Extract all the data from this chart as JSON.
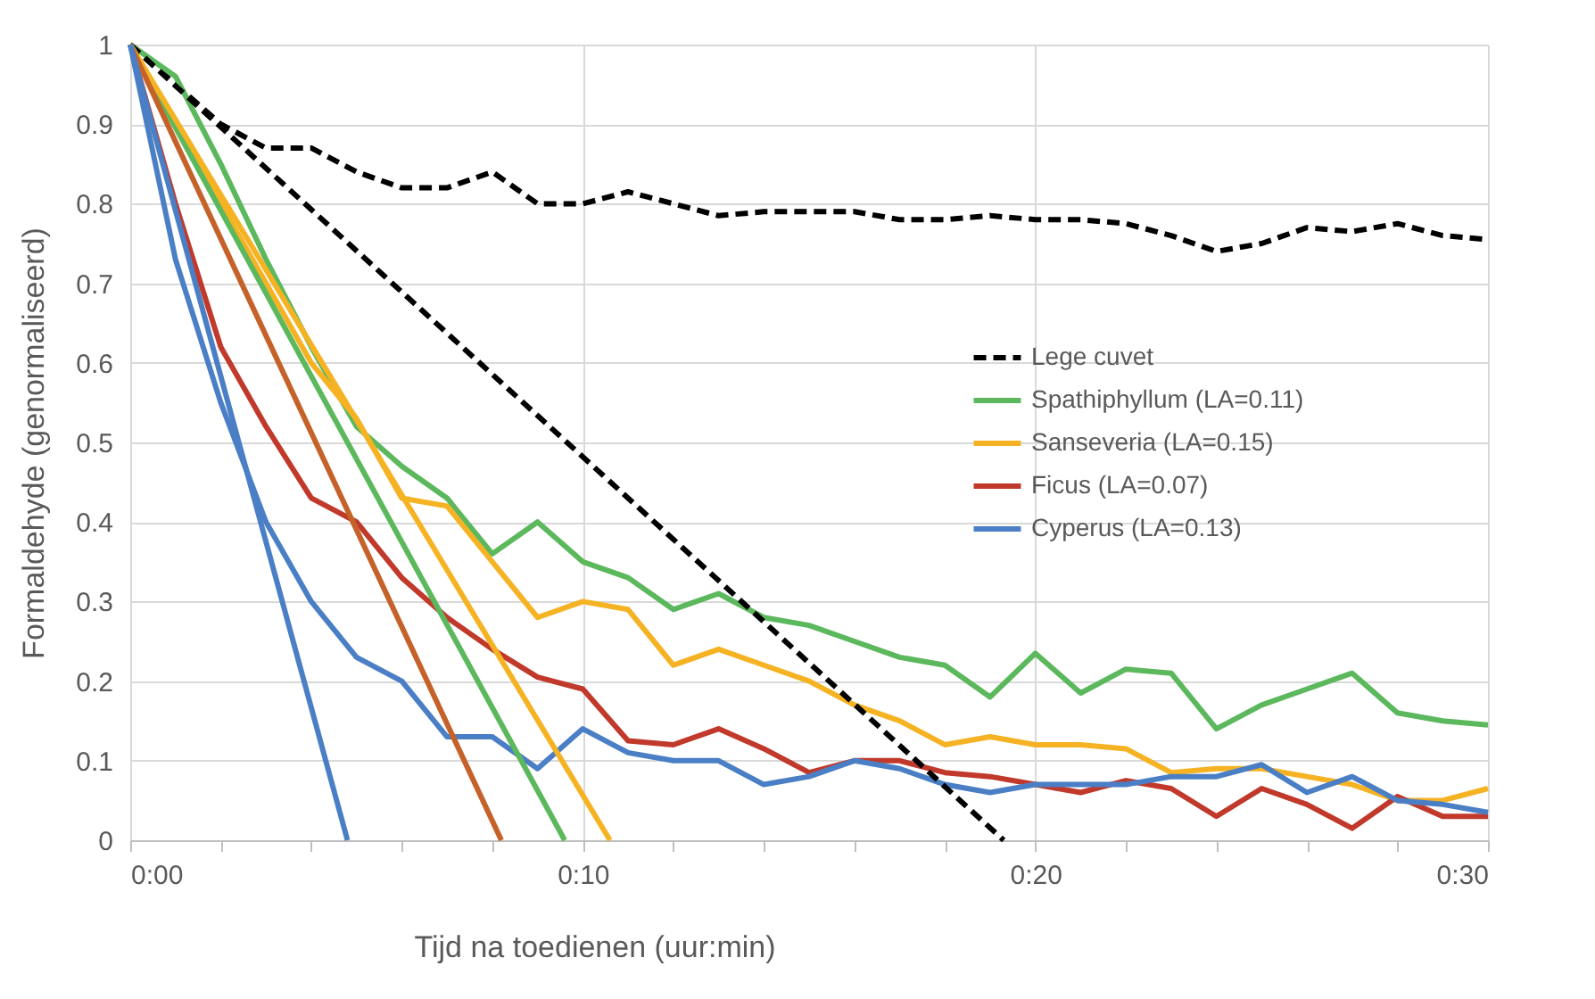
{
  "chart_data": {
    "type": "line",
    "xlabel": "Tijd na toedienen (uur:min)",
    "ylabel": "Formaldehyde (genormaliseerd)",
    "x": [
      0,
      1,
      2,
      3,
      4,
      5,
      6,
      7,
      8,
      9,
      10,
      11,
      12,
      13,
      14,
      15,
      16,
      17,
      18,
      19,
      20,
      21,
      22,
      23,
      24,
      25,
      26,
      27,
      28,
      29,
      30
    ],
    "xlim": [
      0,
      30
    ],
    "ylim": [
      0,
      1
    ],
    "xticks": [
      {
        "value": 0,
        "label": "0:00"
      },
      {
        "value": 2,
        "label": null
      },
      {
        "value": 4,
        "label": null
      },
      {
        "value": 6,
        "label": null
      },
      {
        "value": 8,
        "label": null
      },
      {
        "value": 10,
        "label": "0:10"
      },
      {
        "value": 12,
        "label": null
      },
      {
        "value": 14,
        "label": null
      },
      {
        "value": 16,
        "label": null
      },
      {
        "value": 18,
        "label": null
      },
      {
        "value": 20,
        "label": "0:20"
      },
      {
        "value": 22,
        "label": null
      },
      {
        "value": 24,
        "label": null
      },
      {
        "value": 26,
        "label": null
      },
      {
        "value": 28,
        "label": null
      },
      {
        "value": 30,
        "label": "0:30"
      }
    ],
    "yticks": [
      0,
      0.1,
      0.2,
      0.3,
      0.4,
      0.5,
      0.6,
      0.7,
      0.8,
      0.9,
      1
    ],
    "grid": true,
    "legend": "right",
    "series": [
      {
        "name": "Lege cuvet",
        "color": "#000000",
        "line_style": "dashed",
        "values": [
          1,
          0.95,
          0.9,
          0.87,
          0.87,
          0.84,
          0.82,
          0.82,
          0.84,
          0.8,
          0.8,
          0.815,
          0.8,
          0.785,
          0.79,
          0.79,
          0.79,
          0.78,
          0.78,
          0.785,
          0.78,
          0.78,
          0.775,
          0.76,
          0.74,
          0.75,
          0.77,
          0.765,
          0.775,
          0.76,
          0.755
        ]
      },
      {
        "name": "Spathiphyllum (LA=0.11)",
        "color": "#5cb85c",
        "line_style": "solid",
        "values": [
          1,
          0.96,
          0.85,
          0.73,
          0.62,
          0.52,
          0.47,
          0.43,
          0.36,
          0.4,
          0.35,
          0.33,
          0.29,
          0.31,
          0.28,
          0.27,
          0.25,
          0.23,
          0.22,
          0.18,
          0.235,
          0.185,
          0.215,
          0.21,
          0.14,
          0.17,
          0.19,
          0.21,
          0.16,
          0.15,
          0.145
        ]
      },
      {
        "name": "Sanseveria (LA=0.15)",
        "color": "#f5b324",
        "line_style": "solid",
        "values": [
          1,
          0.9,
          0.8,
          0.7,
          0.6,
          0.53,
          0.43,
          0.42,
          0.35,
          0.28,
          0.3,
          0.29,
          0.22,
          0.24,
          0.22,
          0.2,
          0.17,
          0.15,
          0.12,
          0.13,
          0.12,
          0.12,
          0.115,
          0.085,
          0.09,
          0.09,
          0.08,
          0.07,
          0.05,
          0.05,
          0.065
        ]
      },
      {
        "name": "Ficus (LA=0.07)",
        "color": "#c0392b",
        "line_style": "solid",
        "values": [
          1,
          0.8,
          0.62,
          0.52,
          0.43,
          0.4,
          0.33,
          0.28,
          0.24,
          0.205,
          0.19,
          0.125,
          0.12,
          0.14,
          0.115,
          0.085,
          0.1,
          0.1,
          0.085,
          0.08,
          0.07,
          0.06,
          0.075,
          0.065,
          0.03,
          0.065,
          0.045,
          0.015,
          0.055,
          0.03,
          0.03
        ]
      },
      {
        "name": "Cyperus (LA=0.13)",
        "color": "#4a7fc6",
        "line_style": "solid",
        "values": [
          1,
          0.73,
          0.55,
          0.4,
          0.3,
          0.23,
          0.2,
          0.13,
          0.13,
          0.09,
          0.14,
          0.11,
          0.1,
          0.1,
          0.07,
          0.08,
          0.1,
          0.09,
          0.07,
          0.06,
          0.07,
          0.07,
          0.07,
          0.08,
          0.08,
          0.095,
          0.06,
          0.08,
          0.05,
          0.045,
          0.035
        ]
      },
      {
        "type": "line",
        "color": "#000000",
        "line_style": "dashed",
        "x": [
          0,
          19.3
        ],
        "values": [
          1,
          0
        ]
      },
      {
        "type": "line",
        "color": "#5cb85c",
        "line_style": "solid",
        "x": [
          0,
          9.6
        ],
        "values": [
          1,
          0
        ]
      },
      {
        "type": "line",
        "color": "#f5b324",
        "line_style": "solid",
        "x": [
          0,
          10.6
        ],
        "values": [
          1,
          0
        ]
      },
      {
        "type": "line",
        "color": "#c5622a",
        "line_style": "solid",
        "x": [
          0,
          8.2
        ],
        "values": [
          1,
          0
        ]
      },
      {
        "type": "line",
        "color": "#4a7fc6",
        "line_style": "solid",
        "x": [
          0,
          4.8
        ],
        "values": [
          1,
          0
        ]
      }
    ]
  }
}
